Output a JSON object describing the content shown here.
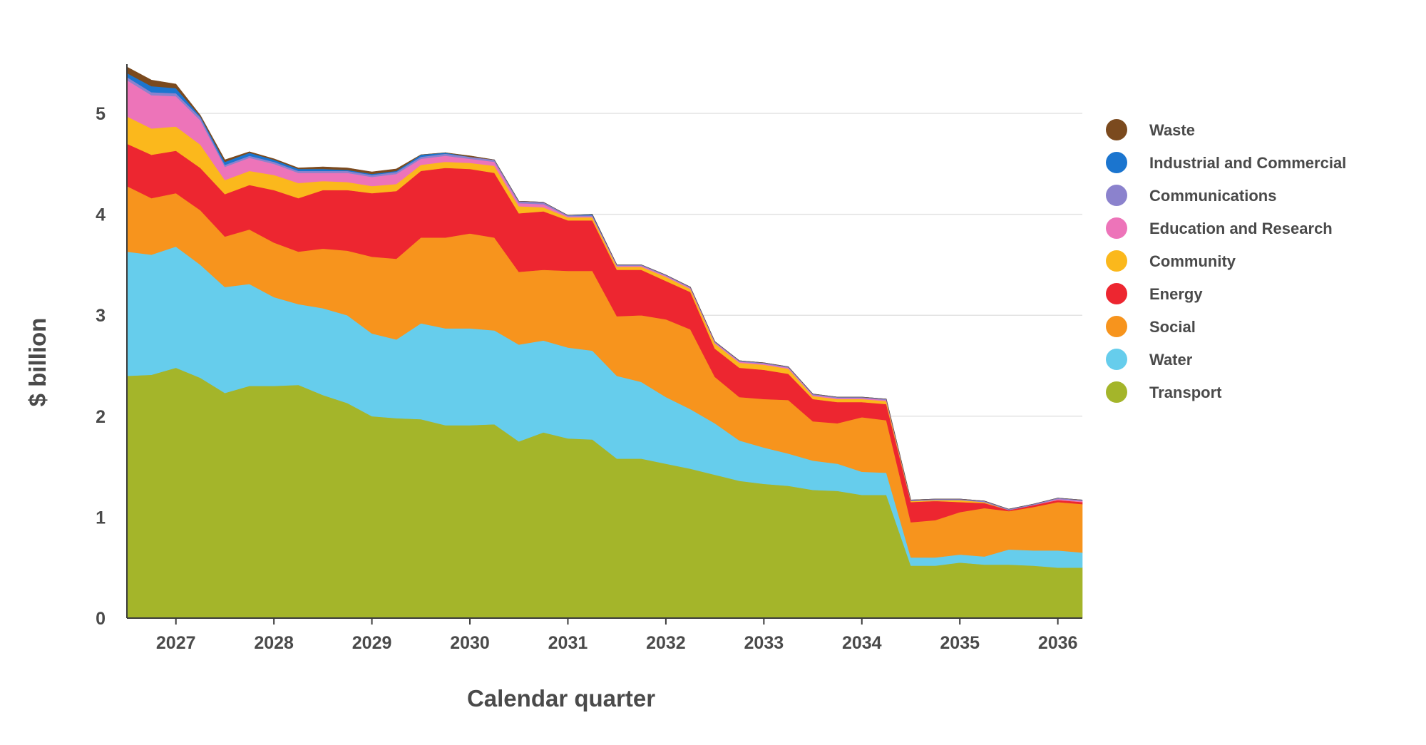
{
  "chart_data": {
    "type": "area",
    "stacked": true,
    "title": "",
    "xlabel": "Calendar quarter",
    "ylabel": "$ billion",
    "ylim": [
      0,
      5.5
    ],
    "yticks": [
      0,
      1,
      2,
      3,
      4,
      5
    ],
    "xlim": [
      2026.5,
      2036.25
    ],
    "xticks": [
      2027,
      2028,
      2029,
      2030,
      2031,
      2032,
      2033,
      2034,
      2035,
      2036
    ],
    "xtick_labels": [
      "2027",
      "2028",
      "2029",
      "2030",
      "2031",
      "2032",
      "2033",
      "2034",
      "2035",
      "2036"
    ],
    "grid": "horizontal",
    "legend": "right",
    "x": [
      2026.5,
      2026.75,
      2027.0,
      2027.25,
      2027.5,
      2027.75,
      2028.0,
      2028.25,
      2028.5,
      2028.75,
      2029.0,
      2029.25,
      2029.5,
      2029.75,
      2030.0,
      2030.25,
      2030.5,
      2030.75,
      2031.0,
      2031.25,
      2031.5,
      2031.75,
      2032.0,
      2032.25,
      2032.5,
      2032.75,
      2033.0,
      2033.25,
      2033.5,
      2033.75,
      2034.0,
      2034.25,
      2034.5,
      2034.75,
      2035.0,
      2035.25,
      2035.5,
      2035.75,
      2036.0,
      2036.25
    ],
    "series": [
      {
        "name": "Transport",
        "color": "#a4b52a",
        "values": [
          2.4,
          2.41,
          2.48,
          2.38,
          2.23,
          2.3,
          2.3,
          2.31,
          2.21,
          2.13,
          2.0,
          1.98,
          1.97,
          1.91,
          1.91,
          1.92,
          1.75,
          1.84,
          1.78,
          1.77,
          1.58,
          1.58,
          1.53,
          1.48,
          1.42,
          1.36,
          1.33,
          1.31,
          1.27,
          1.26,
          1.22,
          1.22,
          0.52,
          0.52,
          0.55,
          0.53,
          0.53,
          0.52,
          0.5,
          0.5
        ]
      },
      {
        "name": "Water",
        "color": "#66cdec",
        "values": [
          1.23,
          1.19,
          1.2,
          1.12,
          1.05,
          1.01,
          0.88,
          0.8,
          0.86,
          0.87,
          0.82,
          0.78,
          0.95,
          0.96,
          0.96,
          0.93,
          0.96,
          0.91,
          0.9,
          0.88,
          0.82,
          0.76,
          0.66,
          0.59,
          0.51,
          0.4,
          0.36,
          0.32,
          0.29,
          0.27,
          0.23,
          0.22,
          0.08,
          0.08,
          0.08,
          0.08,
          0.15,
          0.15,
          0.17,
          0.15
        ]
      },
      {
        "name": "Social",
        "color": "#f7941d",
        "values": [
          0.65,
          0.56,
          0.53,
          0.54,
          0.5,
          0.54,
          0.54,
          0.52,
          0.59,
          0.64,
          0.76,
          0.8,
          0.85,
          0.9,
          0.94,
          0.92,
          0.72,
          0.7,
          0.76,
          0.79,
          0.59,
          0.66,
          0.77,
          0.79,
          0.46,
          0.43,
          0.48,
          0.53,
          0.39,
          0.4,
          0.54,
          0.52,
          0.35,
          0.37,
          0.42,
          0.48,
          0.38,
          0.43,
          0.48,
          0.48
        ]
      },
      {
        "name": "Energy",
        "color": "#ed2630",
        "values": [
          0.42,
          0.43,
          0.42,
          0.42,
          0.42,
          0.44,
          0.52,
          0.53,
          0.58,
          0.6,
          0.63,
          0.67,
          0.66,
          0.69,
          0.64,
          0.64,
          0.58,
          0.58,
          0.5,
          0.5,
          0.46,
          0.45,
          0.38,
          0.37,
          0.28,
          0.29,
          0.29,
          0.26,
          0.22,
          0.21,
          0.15,
          0.16,
          0.2,
          0.19,
          0.1,
          0.05,
          0.01,
          0.02,
          0.02,
          0.02
        ]
      },
      {
        "name": "Community",
        "color": "#fbb81c",
        "values": [
          0.27,
          0.26,
          0.24,
          0.23,
          0.14,
          0.14,
          0.15,
          0.15,
          0.09,
          0.08,
          0.07,
          0.07,
          0.06,
          0.06,
          0.06,
          0.07,
          0.07,
          0.04,
          0.03,
          0.03,
          0.03,
          0.03,
          0.04,
          0.03,
          0.05,
          0.05,
          0.05,
          0.05,
          0.03,
          0.03,
          0.03,
          0.03,
          0.01,
          0.01,
          0.02,
          0.01,
          0.0,
          0.0,
          0.0,
          0.0
        ]
      },
      {
        "name": "Education and Research",
        "color": "#ed74b9",
        "values": [
          0.36,
          0.33,
          0.3,
          0.24,
          0.13,
          0.13,
          0.11,
          0.1,
          0.08,
          0.09,
          0.09,
          0.1,
          0.06,
          0.06,
          0.04,
          0.04,
          0.03,
          0.03,
          0.01,
          0.01,
          0.01,
          0.01,
          0.01,
          0.01,
          0.01,
          0.01,
          0.01,
          0.01,
          0.01,
          0.01,
          0.01,
          0.01,
          0.0,
          0.0,
          0.0,
          0.0,
          0.0,
          0.0,
          0.01,
          0.01
        ]
      },
      {
        "name": "Communications",
        "color": "#8b82cd",
        "values": [
          0.03,
          0.03,
          0.03,
          0.03,
          0.02,
          0.02,
          0.02,
          0.02,
          0.02,
          0.02,
          0.02,
          0.02,
          0.02,
          0.02,
          0.02,
          0.02,
          0.02,
          0.02,
          0.01,
          0.01,
          0.01,
          0.01,
          0.01,
          0.01,
          0.01,
          0.01,
          0.01,
          0.01,
          0.01,
          0.01,
          0.01,
          0.01,
          0.01,
          0.01,
          0.01,
          0.01,
          0.01,
          0.01,
          0.01,
          0.01
        ]
      },
      {
        "name": "Industrial and Commercial",
        "color": "#1b75cf",
        "values": [
          0.04,
          0.06,
          0.05,
          0.01,
          0.03,
          0.03,
          0.02,
          0.02,
          0.02,
          0.01,
          0.01,
          0.01,
          0.02,
          0.01,
          0.0,
          0.0,
          0.0,
          0.0,
          0.0,
          0.01,
          0.0,
          0.0,
          0.0,
          0.0,
          0.0,
          0.0,
          0.0,
          0.0,
          0.0,
          0.0,
          0.0,
          0.0,
          0.0,
          0.0,
          0.0,
          0.0,
          0.0,
          0.0,
          0.0,
          0.0
        ]
      },
      {
        "name": "Waste",
        "color": "#7b4a1e",
        "values": [
          0.06,
          0.06,
          0.04,
          0.01,
          0.02,
          0.01,
          0.01,
          0.01,
          0.02,
          0.02,
          0.02,
          0.02,
          0.0,
          0.0,
          0.01,
          0.0,
          0.0,
          0.0,
          0.0,
          0.0,
          0.0,
          0.0,
          0.0,
          0.0,
          0.0,
          0.0,
          0.0,
          0.0,
          0.0,
          0.0,
          0.0,
          0.0,
          0.0,
          0.0,
          0.0,
          0.0,
          0.0,
          0.0,
          0.0,
          0.0
        ]
      }
    ],
    "legend_order": [
      "Waste",
      "Industrial and Commercial",
      "Communications",
      "Education and Research",
      "Community",
      "Energy",
      "Social",
      "Water",
      "Transport"
    ]
  }
}
